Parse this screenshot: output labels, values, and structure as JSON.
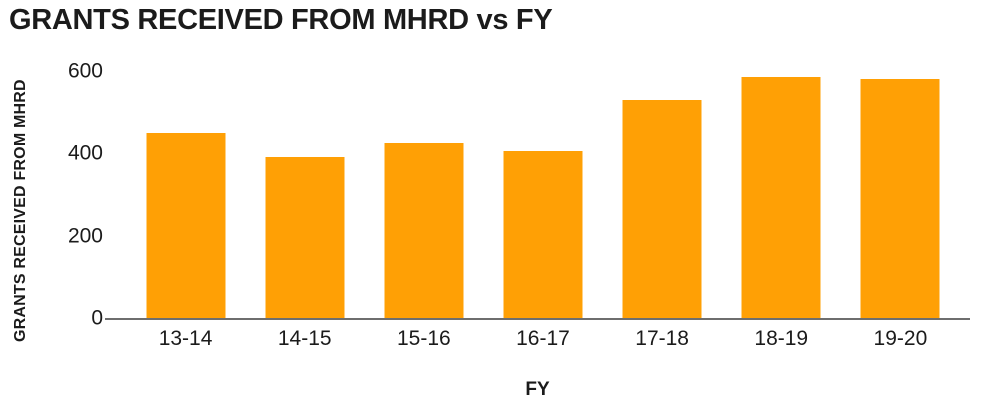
{
  "title": "GRANTS RECEIVED FROM MHRD vs FY",
  "chart_data": {
    "type": "bar",
    "title": "GRANTS RECEIVED FROM MHRD vs FY",
    "xlabel": "FY",
    "ylabel": "GRANTS RECEIVED FROM MHRD",
    "categories": [
      "13-14",
      "14-15",
      "15-16",
      "16-17",
      "17-18",
      "18-19",
      "19-20"
    ],
    "values": [
      450,
      390,
      425,
      405,
      530,
      585,
      580
    ],
    "yticks": [
      0,
      200,
      400,
      600
    ],
    "ylim": [
      0,
      600
    ],
    "grid": false,
    "legend": false,
    "colors": {
      "bar": "#FFA005",
      "axis_line": "#6E6E6E",
      "text": "#1B1B1B",
      "background": "#FFFFFF"
    }
  }
}
